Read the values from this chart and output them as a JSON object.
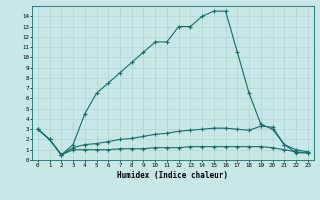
{
  "xlabel": "Humidex (Indice chaleur)",
  "bg_color": "#c8e8e8",
  "grid_color": "#b0d4d4",
  "line_color": "#1a6b6b",
  "xlim": [
    -0.5,
    23.5
  ],
  "ylim": [
    0,
    15
  ],
  "xticks": [
    0,
    1,
    2,
    3,
    4,
    5,
    6,
    7,
    8,
    9,
    10,
    11,
    12,
    13,
    14,
    15,
    16,
    17,
    18,
    19,
    20,
    21,
    22,
    23
  ],
  "yticks": [
    0,
    1,
    2,
    3,
    4,
    5,
    6,
    7,
    8,
    9,
    10,
    11,
    12,
    13,
    14
  ],
  "line1_x": [
    0,
    1,
    2,
    3,
    4,
    5,
    6,
    7,
    8,
    9,
    10,
    11,
    12,
    13,
    14,
    15,
    16,
    17,
    18,
    19,
    20,
    21,
    22,
    23
  ],
  "line1_y": [
    3.0,
    2.0,
    0.5,
    1.0,
    1.0,
    1.0,
    1.0,
    1.1,
    1.1,
    1.1,
    1.2,
    1.2,
    1.2,
    1.3,
    1.3,
    1.3,
    1.3,
    1.3,
    1.3,
    1.3,
    1.2,
    1.0,
    0.8,
    0.7
  ],
  "line2_x": [
    0,
    1,
    2,
    3,
    4,
    5,
    6,
    7,
    8,
    9,
    10,
    11,
    12,
    13,
    14,
    15,
    16,
    17,
    18,
    19,
    20,
    21,
    22,
    23
  ],
  "line2_y": [
    3.0,
    2.0,
    0.5,
    1.2,
    1.5,
    1.6,
    1.8,
    2.0,
    2.1,
    2.3,
    2.5,
    2.6,
    2.8,
    2.9,
    3.0,
    3.1,
    3.1,
    3.0,
    2.9,
    3.3,
    3.2,
    1.5,
    1.0,
    0.8
  ],
  "line3_x": [
    0,
    1,
    2,
    3,
    4,
    5,
    6,
    7,
    8,
    9,
    10,
    11,
    12,
    13,
    14,
    15,
    16,
    17,
    18,
    19,
    20,
    21,
    22,
    23
  ],
  "line3_y": [
    3.0,
    2.0,
    0.5,
    1.5,
    4.5,
    6.5,
    7.5,
    8.5,
    9.5,
    10.5,
    11.5,
    11.5,
    13.0,
    13.0,
    14.0,
    14.5,
    14.5,
    10.5,
    6.5,
    3.5,
    3.0,
    1.5,
    0.7,
    0.7
  ]
}
